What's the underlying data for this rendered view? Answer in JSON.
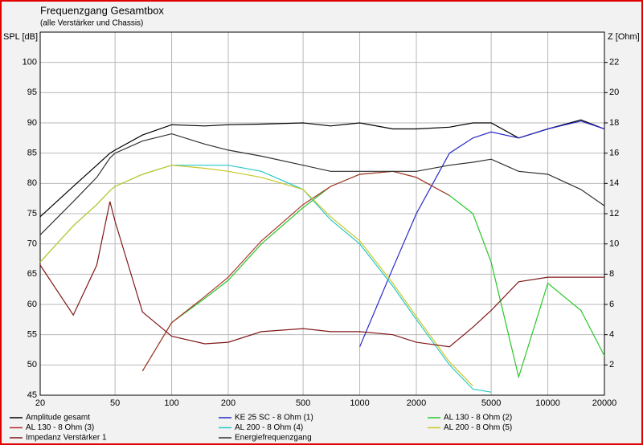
{
  "chart_data": {
    "type": "line",
    "title": "Frequenzgang Gesamtbox",
    "subtitle": "(alle Verstärker und Chassis)",
    "y_label": "SPL [dB]",
    "y2_label": "Z [Ohm]",
    "log_x": true,
    "grid": true,
    "x": [
      20,
      30,
      40,
      47,
      50,
      70,
      100,
      150,
      200,
      300,
      500,
      700,
      1000,
      1500,
      2000,
      3000,
      4000,
      5000,
      7000,
      10000,
      15000,
      20000
    ],
    "xlim": [
      20,
      20000
    ],
    "xticks": [
      20,
      50,
      100,
      200,
      500,
      1000,
      2000,
      5000,
      10000,
      20000
    ],
    "ylim": [
      45,
      105
    ],
    "yticks": [
      45,
      50,
      55,
      60,
      65,
      70,
      75,
      80,
      85,
      90,
      95,
      100
    ],
    "y2lim": [
      0,
      24
    ],
    "y2ticks": [
      2,
      4,
      6,
      8,
      10,
      12,
      14,
      16,
      18,
      20,
      22
    ],
    "series": [
      {
        "name": "Amplitude gesamt",
        "color": "#000000",
        "values": [
          74.5,
          79.5,
          83,
          85,
          85.5,
          88,
          89.7,
          89.5,
          89.7,
          89.8,
          90,
          89.5,
          90,
          89,
          89,
          89.3,
          90,
          90,
          87.5,
          89,
          90.5,
          89
        ]
      },
      {
        "name": "KE 25 SC - 8 Ohm   (1)",
        "color": "#2828c8",
        "values": [
          null,
          null,
          null,
          null,
          null,
          null,
          null,
          null,
          null,
          null,
          null,
          null,
          53,
          66,
          75,
          85,
          87.5,
          88.5,
          87.5,
          89,
          90.3,
          89
        ]
      },
      {
        "name": "AL 130 - 8 Ohm (2)",
        "color": "#28c828",
        "values": [
          null,
          null,
          null,
          null,
          null,
          49,
          57,
          61,
          64,
          70,
          76,
          79.5,
          81.5,
          82,
          81,
          78,
          75,
          67,
          48,
          63.5,
          59,
          51.5
        ]
      },
      {
        "name": "AL 130 - 8 Ohm (3)",
        "color": "#b03030",
        "values": [
          null,
          null,
          null,
          null,
          null,
          49,
          57,
          61.3,
          64.5,
          70.5,
          76.5,
          79.5,
          81.5,
          82,
          81,
          78,
          null,
          null,
          null,
          null,
          null,
          null
        ]
      },
      {
        "name": "AL 200 - 8 Ohm (4)",
        "color": "#28c8c8",
        "values": [
          67,
          73,
          76.5,
          78.8,
          79.5,
          81.5,
          83,
          83,
          83,
          82,
          79,
          74,
          70,
          63,
          57.5,
          50,
          46,
          45.5,
          null,
          null,
          null,
          null
        ]
      },
      {
        "name": "AL 200 - 8 Ohm (5)",
        "color": "#c8c828",
        "values": [
          67,
          73,
          76.5,
          78.8,
          79.5,
          81.5,
          83,
          82.5,
          82,
          81,
          79,
          74.5,
          70.5,
          63.5,
          58,
          50.5,
          46.5,
          null,
          null,
          null,
          null,
          null
        ]
      },
      {
        "name": "Impedanz Verstärker 1",
        "color": "#801818",
        "axis": "y2",
        "values": [
          8.6,
          5.3,
          8.6,
          12.8,
          11.5,
          5.5,
          3.9,
          3.4,
          3.5,
          4.2,
          4.4,
          4.2,
          4.2,
          4.0,
          3.5,
          3.2,
          4.5,
          5.6,
          7.5,
          7.8,
          7.8,
          7.8
        ]
      },
      {
        "name": "Energiefrequenzgang",
        "color": "#303030",
        "values": [
          71.5,
          77,
          81,
          84.2,
          85,
          87,
          88.2,
          86.5,
          85.5,
          84.5,
          83,
          82,
          82,
          82,
          82,
          83,
          83.5,
          84,
          82,
          81.5,
          79,
          76.3
        ]
      }
    ]
  }
}
